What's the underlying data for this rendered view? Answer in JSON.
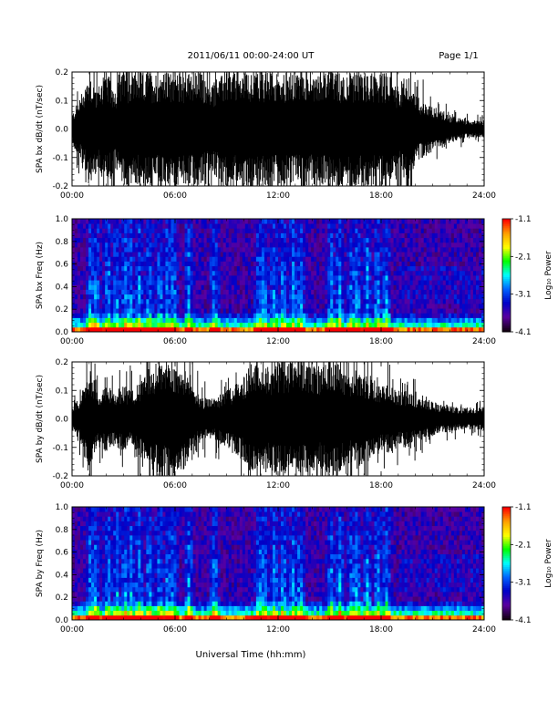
{
  "header": {
    "title": "2011/06/11   00:00-24:00 UT",
    "page": "Page 1/1"
  },
  "footer": {
    "xlabel": "Universal Time (hh:mm)"
  },
  "colorbar": {
    "label": "Log₁₀ Power",
    "ticks": [
      "-1.1",
      "-2.1",
      "-3.1",
      "-4.1"
    ],
    "colors": [
      "#ff0000",
      "#ffa000",
      "#ffff00",
      "#00ff00",
      "#00ffff",
      "#0064ff",
      "#0000c8",
      "#5a00a0",
      "#140014"
    ]
  },
  "chart_data": [
    {
      "type": "line",
      "ylabel": "SPA bx dB/dt (nT/sec)",
      "x_ticks": [
        "00:00",
        "06:00",
        "12:00",
        "18:00",
        "24:00"
      ],
      "y_ticks": [
        "0.2",
        "0.1",
        "0.0",
        "-0.1",
        "-0.2"
      ],
      "xlim": [
        0,
        24
      ],
      "ylim": [
        -0.2,
        0.2
      ],
      "envelope": {
        "x": [
          0,
          0.5,
          1,
          1.5,
          2,
          2.5,
          3,
          3.5,
          4,
          4.5,
          5,
          5.5,
          6,
          6.5,
          7,
          7.5,
          8,
          8.5,
          9,
          9.5,
          10,
          10.5,
          11,
          11.5,
          12,
          12.5,
          13,
          13.5,
          14,
          14.5,
          15,
          15.5,
          16,
          16.5,
          17,
          17.5,
          18,
          18.5,
          19,
          19.5,
          20,
          20.5,
          21,
          21.5,
          22,
          22.5,
          23,
          23.5,
          24
        ],
        "amplitude": [
          0.05,
          0.12,
          0.2,
          0.15,
          0.2,
          0.15,
          0.2,
          0.2,
          0.2,
          0.2,
          0.2,
          0.2,
          0.2,
          0.2,
          0.2,
          0.2,
          0.15,
          0.18,
          0.2,
          0.2,
          0.2,
          0.2,
          0.2,
          0.2,
          0.2,
          0.2,
          0.2,
          0.2,
          0.2,
          0.2,
          0.2,
          0.2,
          0.2,
          0.2,
          0.2,
          0.2,
          0.2,
          0.2,
          0.15,
          0.2,
          0.12,
          0.1,
          0.08,
          0.07,
          0.05,
          0.04,
          0.03,
          0.03,
          0.03
        ]
      }
    },
    {
      "type": "heatmap",
      "ylabel": "SPA bx Freq (Hz)",
      "x_ticks": [
        "00:00",
        "06:00",
        "12:00",
        "18:00",
        "24:00"
      ],
      "y_ticks": [
        "1.0",
        "0.8",
        "0.6",
        "0.4",
        "0.2",
        "0.0"
      ],
      "xlim": [
        0,
        24
      ],
      "ylim": [
        0,
        1
      ],
      "zlim": [
        -4.1,
        -1.1
      ],
      "active_hours": [
        1.1,
        1.4,
        2.1,
        2.6,
        3.1,
        3.4,
        3.9,
        4.5,
        5.1,
        5.6,
        5.9,
        6.8,
        8.3,
        10.9,
        11.2,
        11.8,
        12.3,
        12.9,
        13.3,
        15.1,
        15.6,
        16.3,
        16.6,
        17.2,
        17.8,
        18.3
      ]
    },
    {
      "type": "line",
      "ylabel": "SPA by dB/dt (nT/sec)",
      "x_ticks": [
        "00:00",
        "06:00",
        "12:00",
        "18:00",
        "24:00"
      ],
      "y_ticks": [
        "0.2",
        "0.1",
        "0.0",
        "-0.1",
        "-0.2"
      ],
      "xlim": [
        0,
        24
      ],
      "ylim": [
        -0.2,
        0.2
      ],
      "envelope": {
        "x": [
          0,
          0.5,
          1,
          1.5,
          2,
          2.5,
          3,
          3.5,
          4,
          4.5,
          5,
          5.5,
          6,
          6.5,
          7,
          7.5,
          8,
          8.5,
          9,
          9.5,
          10,
          10.5,
          11,
          11.5,
          12,
          12.5,
          13,
          13.5,
          14,
          14.5,
          15,
          15.5,
          16,
          16.5,
          17,
          17.5,
          18,
          18.5,
          19,
          19.5,
          20,
          20.5,
          21,
          21.5,
          22,
          22.5,
          23,
          23.5,
          24
        ],
        "amplitude": [
          0.04,
          0.08,
          0.2,
          0.08,
          0.12,
          0.1,
          0.12,
          0.1,
          0.14,
          0.18,
          0.2,
          0.2,
          0.2,
          0.18,
          0.12,
          0.08,
          0.07,
          0.08,
          0.1,
          0.12,
          0.15,
          0.2,
          0.2,
          0.18,
          0.2,
          0.2,
          0.2,
          0.2,
          0.2,
          0.18,
          0.2,
          0.2,
          0.15,
          0.18,
          0.16,
          0.14,
          0.12,
          0.12,
          0.1,
          0.1,
          0.08,
          0.07,
          0.06,
          0.05,
          0.05,
          0.04,
          0.04,
          0.04,
          0.04
        ]
      }
    },
    {
      "type": "heatmap",
      "ylabel": "SPA by Freq (Hz)",
      "x_ticks": [
        "00:00",
        "06:00",
        "12:00",
        "18:00",
        "24:00"
      ],
      "y_ticks": [
        "1.0",
        "0.8",
        "0.6",
        "0.4",
        "0.2",
        "0.0"
      ],
      "xlim": [
        0,
        24
      ],
      "ylim": [
        0,
        1
      ],
      "zlim": [
        -4.1,
        -1.1
      ],
      "active_hours": [
        1.1,
        1.4,
        2.1,
        2.6,
        3.1,
        3.4,
        3.9,
        4.5,
        5.1,
        5.6,
        5.9,
        6.8,
        8.3,
        10.9,
        11.2,
        11.8,
        12.3,
        12.9,
        13.3,
        15.1,
        15.6,
        16.3,
        16.6,
        17.2,
        17.8,
        18.3
      ]
    }
  ]
}
